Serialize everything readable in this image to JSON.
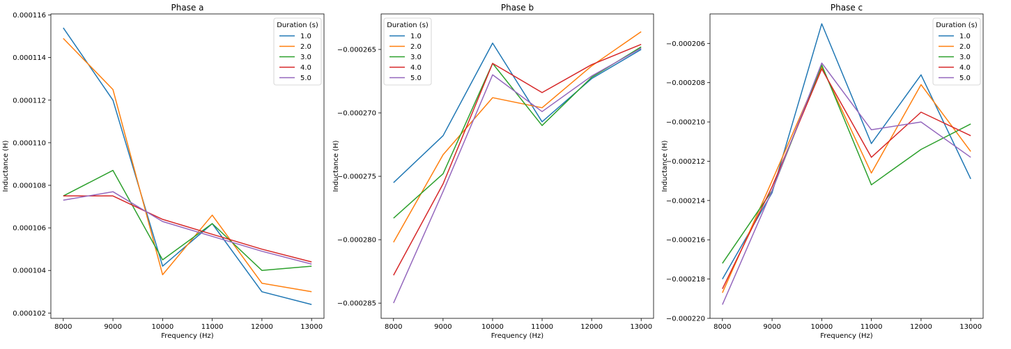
{
  "chart_data": [
    {
      "type": "line",
      "title": "Phase a",
      "xlabel": "Frequency (Hz)",
      "ylabel": "Inductance (H)",
      "x": [
        8000,
        9000,
        10000,
        11000,
        12000,
        13000
      ],
      "xticks": [
        "8000",
        "9000",
        "10000",
        "11000",
        "12000",
        "13000"
      ],
      "xlim": [
        7750,
        13250
      ],
      "ylim": [
        0.00010175,
        0.00011605
      ],
      "yticks": [
        0.000102,
        0.000104,
        0.000106,
        0.000108,
        0.00011,
        0.000112,
        0.000114,
        0.000116
      ],
      "ytick_labels": [
        "0.000102",
        "0.000104",
        "0.000106",
        "0.000108",
        "0.000110",
        "0.000112",
        "0.000114",
        "0.000116"
      ],
      "grid": false,
      "legend": {
        "title": "Duration (s)",
        "position": "top-right"
      },
      "series": [
        {
          "name": "1.0",
          "color": "#1f77b4",
          "values": [
            0.0001154,
            0.000112,
            0.0001042,
            0.0001062,
            0.000103,
            0.0001024
          ]
        },
        {
          "name": "2.0",
          "color": "#ff7f0e",
          "values": [
            0.0001149,
            0.0001125,
            0.0001038,
            0.0001066,
            0.0001034,
            0.000103
          ]
        },
        {
          "name": "3.0",
          "color": "#2ca02c",
          "values": [
            0.0001075,
            0.0001087,
            0.0001045,
            0.0001062,
            0.000104,
            0.0001042
          ]
        },
        {
          "name": "4.0",
          "color": "#d62728",
          "values": [
            0.0001075,
            0.0001075,
            0.0001064,
            0.0001057,
            0.000105,
            0.0001044
          ]
        },
        {
          "name": "5.0",
          "color": "#9467bd",
          "values": [
            0.0001073,
            0.0001077,
            0.0001063,
            0.0001056,
            0.0001049,
            0.0001043
          ]
        }
      ]
    },
    {
      "type": "line",
      "title": "Phase b",
      "xlabel": "Frequency (Hz)",
      "ylabel": "Inductance (H)",
      "x": [
        8000,
        9000,
        10000,
        11000,
        12000,
        13000
      ],
      "xticks": [
        "8000",
        "9000",
        "10000",
        "11000",
        "12000",
        "13000"
      ],
      "xlim": [
        7750,
        13250
      ],
      "ylim": [
        -0.0002862,
        -0.0002622
      ],
      "yticks": [
        -0.000285,
        -0.00028,
        -0.000275,
        -0.00027,
        -0.000265
      ],
      "ytick_labels": [
        "−0.000285",
        "−0.000280",
        "−0.000275",
        "−0.000270",
        "−0.000265"
      ],
      "grid": false,
      "legend": {
        "title": "Duration (s)",
        "position": "top-left"
      },
      "series": [
        {
          "name": "1.0",
          "color": "#1f77b4",
          "values": [
            -0.0002755,
            -0.0002718,
            -0.0002645,
            -0.0002707,
            -0.0002673,
            -0.000265
          ]
        },
        {
          "name": "2.0",
          "color": "#ff7f0e",
          "values": [
            -0.0002802,
            -0.0002733,
            -0.0002688,
            -0.0002696,
            -0.0002663,
            -0.0002636
          ]
        },
        {
          "name": "3.0",
          "color": "#2ca02c",
          "values": [
            -0.0002783,
            -0.0002748,
            -0.0002661,
            -0.000271,
            -0.0002672,
            -0.0002648
          ]
        },
        {
          "name": "4.0",
          "color": "#d62728",
          "values": [
            -0.0002828,
            -0.0002756,
            -0.0002661,
            -0.0002684,
            -0.0002662,
            -0.0002646
          ]
        },
        {
          "name": "5.0",
          "color": "#9467bd",
          "values": [
            -0.000285,
            -0.0002762,
            -0.000267,
            -0.0002699,
            -0.0002671,
            -0.0002649
          ]
        }
      ]
    },
    {
      "type": "line",
      "title": "Phase c",
      "xlabel": "Frequency (Hz)",
      "ylabel": "Inductance (H)",
      "x": [
        8000,
        9000,
        10000,
        11000,
        12000,
        13000
      ],
      "xticks": [
        "8000",
        "9000",
        "10000",
        "11000",
        "12000",
        "13000"
      ],
      "xlim": [
        7750,
        13250
      ],
      "ylim": [
        -0.00022,
        -0.0002045
      ],
      "yticks": [
        -0.00022,
        -0.000218,
        -0.000216,
        -0.000214,
        -0.000212,
        -0.00021,
        -0.000208,
        -0.000206
      ],
      "ytick_labels": [
        "−0.000220",
        "−0.000218",
        "−0.000216",
        "−0.000214",
        "−0.000212",
        "−0.000210",
        "−0.000208",
        "−0.000206"
      ],
      "grid": false,
      "legend": {
        "title": "Duration (s)",
        "position": "top-right"
      },
      "series": [
        {
          "name": "1.0",
          "color": "#1f77b4",
          "values": [
            -0.000218,
            -0.0002136,
            -0.000205,
            -0.0002111,
            -0.0002076,
            -0.0002129
          ]
        },
        {
          "name": "2.0",
          "color": "#ff7f0e",
          "values": [
            -0.0002187,
            -0.000213,
            -0.0002072,
            -0.0002126,
            -0.0002081,
            -0.0002115
          ]
        },
        {
          "name": "3.0",
          "color": "#2ca02c",
          "values": [
            -0.0002172,
            -0.0002135,
            -0.0002071,
            -0.0002132,
            -0.0002114,
            -0.0002101
          ]
        },
        {
          "name": "4.0",
          "color": "#d62728",
          "values": [
            -0.0002185,
            -0.0002133,
            -0.0002073,
            -0.0002118,
            -0.0002095,
            -0.0002107
          ]
        },
        {
          "name": "5.0",
          "color": "#9467bd",
          "values": [
            -0.0002193,
            -0.0002135,
            -0.000207,
            -0.0002104,
            -0.00021,
            -0.0002118
          ]
        }
      ]
    }
  ]
}
